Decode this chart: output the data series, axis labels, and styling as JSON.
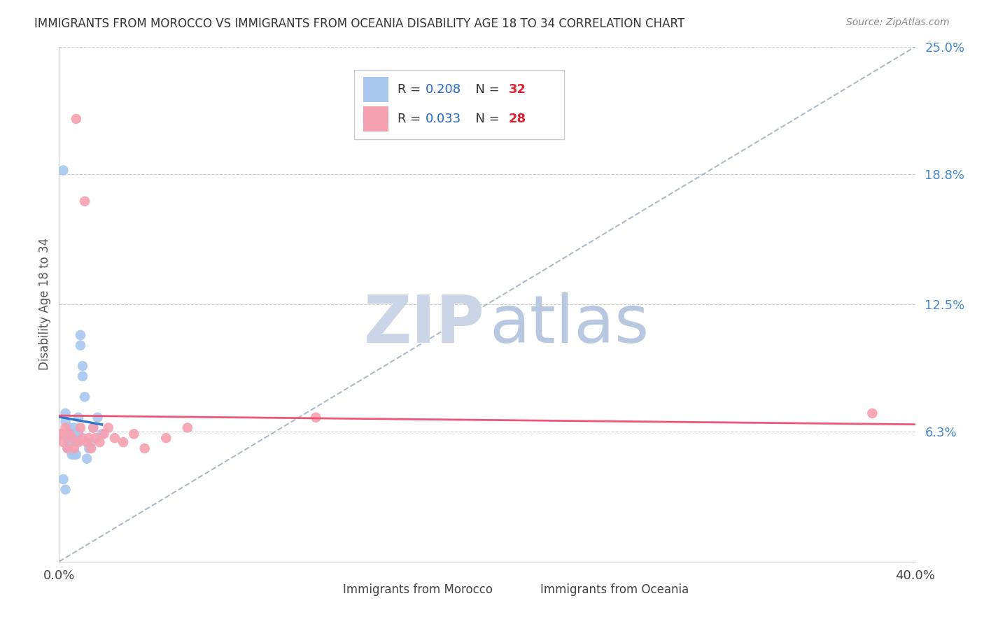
{
  "title": "IMMIGRANTS FROM MOROCCO VS IMMIGRANTS FROM OCEANIA DISABILITY AGE 18 TO 34 CORRELATION CHART",
  "source": "Source: ZipAtlas.com",
  "ylabel": "Disability Age 18 to 34",
  "xlim": [
    0.0,
    0.4
  ],
  "ylim": [
    0.0,
    0.25
  ],
  "xticklabels": [
    "0.0%",
    "40.0%"
  ],
  "ytick_positions": [
    0.063,
    0.125,
    0.188,
    0.25
  ],
  "ytick_labels": [
    "6.3%",
    "12.5%",
    "18.8%",
    "25.0%"
  ],
  "grid_color": "#cccccc",
  "background_color": "#ffffff",
  "morocco_color": "#a8c8f0",
  "oceania_color": "#f5a0b0",
  "morocco_R": 0.208,
  "morocco_N": 32,
  "oceania_R": 0.033,
  "oceania_N": 28,
  "morocco_line_color": "#3377cc",
  "oceania_line_color": "#ee5577",
  "diagonal_line_color": "#99aabb",
  "legend_R_color": "#2266cc",
  "legend_N_color": "#dd2233",
  "morocco_x": [
    0.001,
    0.002,
    0.003,
    0.003,
    0.004,
    0.004,
    0.005,
    0.005,
    0.006,
    0.006,
    0.006,
    0.007,
    0.007,
    0.007,
    0.008,
    0.008,
    0.008,
    0.009,
    0.009,
    0.01,
    0.01,
    0.011,
    0.011,
    0.012,
    0.013,
    0.014,
    0.015,
    0.016,
    0.018,
    0.02,
    0.002,
    0.003
  ],
  "morocco_y": [
    0.062,
    0.19,
    0.068,
    0.072,
    0.055,
    0.06,
    0.058,
    0.065,
    0.052,
    0.058,
    0.063,
    0.052,
    0.06,
    0.065,
    0.052,
    0.058,
    0.063,
    0.062,
    0.07,
    0.105,
    0.11,
    0.09,
    0.095,
    0.08,
    0.05,
    0.055,
    0.058,
    0.065,
    0.07,
    0.062,
    0.04,
    0.035
  ],
  "oceania_x": [
    0.001,
    0.002,
    0.003,
    0.004,
    0.005,
    0.006,
    0.007,
    0.009,
    0.01,
    0.011,
    0.013,
    0.014,
    0.015,
    0.016,
    0.017,
    0.019,
    0.021,
    0.023,
    0.026,
    0.03,
    0.035,
    0.04,
    0.05,
    0.06,
    0.12,
    0.008,
    0.012,
    0.38
  ],
  "oceania_y": [
    0.062,
    0.058,
    0.065,
    0.055,
    0.062,
    0.06,
    0.055,
    0.058,
    0.065,
    0.06,
    0.058,
    0.06,
    0.055,
    0.065,
    0.06,
    0.058,
    0.062,
    0.065,
    0.06,
    0.058,
    0.062,
    0.055,
    0.06,
    0.065,
    0.07,
    0.215,
    0.175,
    0.072
  ],
  "watermark_zip_color": "#ccd5e8",
  "watermark_atlas_color": "#b8c8e0"
}
